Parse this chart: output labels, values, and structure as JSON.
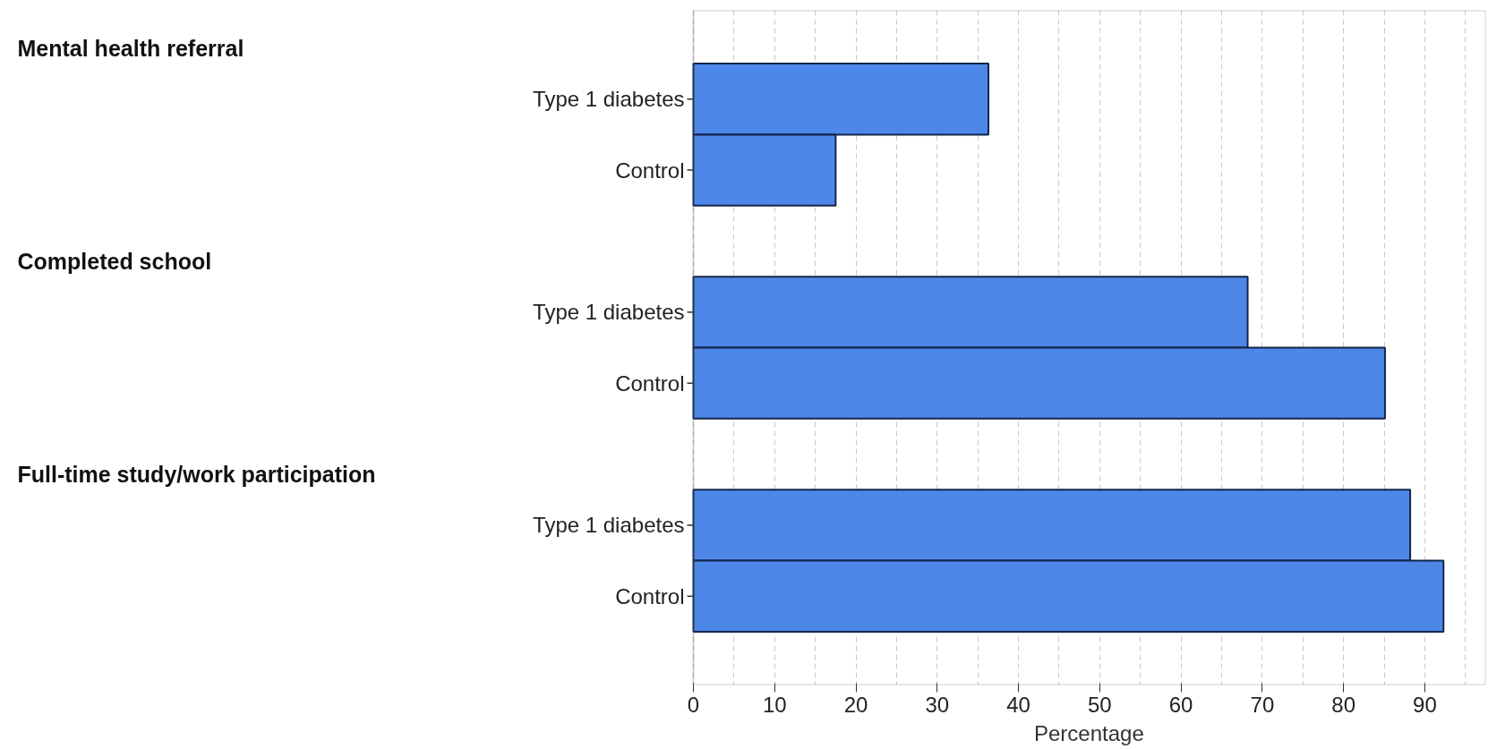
{
  "chart_data": {
    "type": "bar",
    "orientation": "horizontal",
    "categories": [
      "Type 1 diabetes",
      "Control",
      null,
      "Type 1 diabetes",
      "Control",
      null,
      "Type 1 diabetes",
      "Control"
    ],
    "values": [
      36.3,
      17.5,
      null,
      68.2,
      85.1,
      null,
      88.2,
      92.3
    ],
    "color": "#4d87e8",
    "xlabel": "Percentage",
    "xlim": [
      0,
      97.5
    ],
    "xticks": [
      0,
      {
        "value": 5,
        "label": null
      },
      10,
      {
        "value": 15,
        "label": null
      },
      20,
      {
        "value": 25,
        "label": null
      },
      30,
      {
        "value": 35,
        "label": null
      },
      40,
      {
        "value": 45,
        "label": null
      },
      50,
      {
        "value": 55,
        "label": null
      },
      60,
      {
        "value": 65,
        "label": null
      },
      70,
      {
        "value": 75,
        "label": null
      },
      80,
      {
        "value": 85,
        "label": null
      },
      90,
      {
        "value": 95,
        "label": null
      }
    ],
    "grid": "x",
    "annotations": [
      "Mental health referral",
      "Completed school",
      "Full-time study/work participation"
    ]
  }
}
